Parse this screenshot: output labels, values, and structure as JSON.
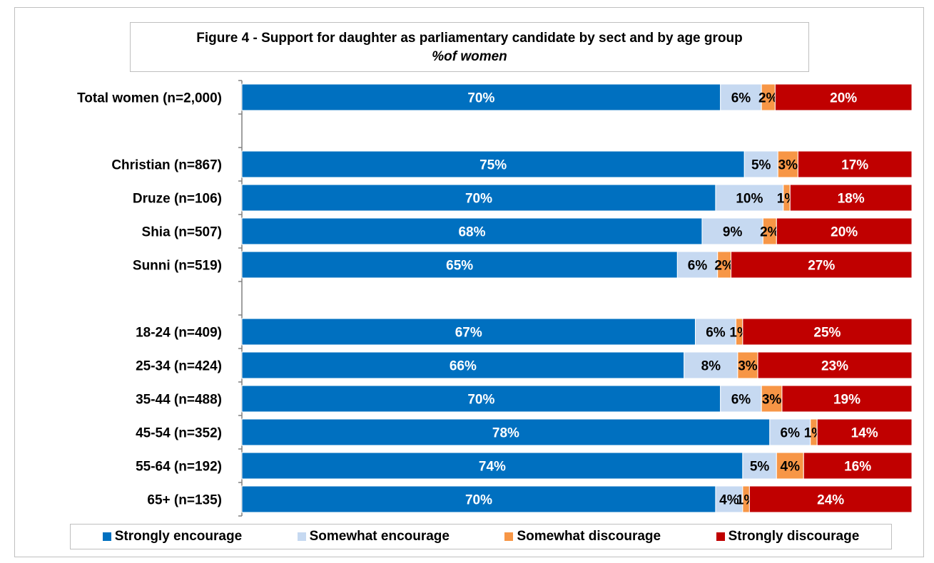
{
  "chart_data": {
    "type": "bar",
    "orientation": "horizontal",
    "stacked": true,
    "title": "Figure 4 - Support for daughter as parliamentary candidate by sect and by age group",
    "subtitle": "%of women",
    "categories": [
      "Total women (n=2,000)",
      "",
      "Christian (n=867)",
      "Druze (n=106)",
      "Shia (n=507)",
      "Sunni (n=519)",
      "",
      "18-24 (n=409)",
      "25-34 (n=424)",
      "35-44 (n=488)",
      "45-54 (n=352)",
      "55-64 (n=192)",
      "65+ (n=135)"
    ],
    "series": [
      {
        "name": "Strongly encourage",
        "color": "#0070c0",
        "label_color": "#ffffff",
        "values": [
          70,
          null,
          75,
          70,
          68,
          65,
          null,
          67,
          66,
          70,
          78,
          74,
          70
        ]
      },
      {
        "name": "Somewhat encourage",
        "color": "#c6d9f1",
        "label_color": "#000000",
        "values": [
          6,
          null,
          5,
          10,
          9,
          6,
          null,
          6,
          8,
          6,
          6,
          5,
          4
        ]
      },
      {
        "name": "Somewhat discourage",
        "color": "#f79646",
        "label_color": "#000000",
        "values": [
          2,
          null,
          3,
          1,
          2,
          2,
          null,
          1,
          3,
          3,
          1,
          4,
          1
        ]
      },
      {
        "name": "Strongly discourage",
        "color": "#c00000",
        "label_color": "#ffffff",
        "values": [
          20,
          null,
          17,
          18,
          20,
          27,
          null,
          25,
          23,
          19,
          14,
          16,
          24
        ]
      }
    ],
    "label_suffix": "%",
    "xlim": [
      0,
      100
    ],
    "grid": false,
    "legend_position": "bottom"
  }
}
